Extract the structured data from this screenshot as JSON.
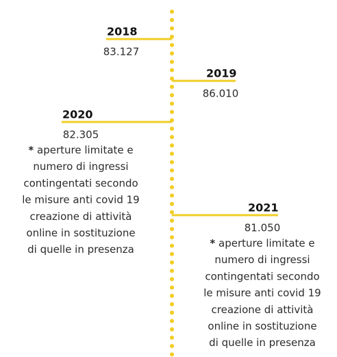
{
  "entries": [
    {
      "year": "2018",
      "value": "83.127"
    },
    {
      "year": "2019",
      "value": "86.010"
    },
    {
      "year": "2020",
      "value": "82.305",
      "marker": "*",
      "note": [
        "aperture limitate e",
        "numero di ingressi",
        "contingentati secondo",
        "le misure anti covid 19",
        "creazione di attività",
        "online in sostituzione",
        "di quelle in presenza"
      ]
    },
    {
      "year": "2021",
      "value": "81.050",
      "marker": "*",
      "note": [
        "aperture limitate e",
        "numero di ingressi",
        "contingentati secondo",
        "le misure anti covid 19",
        "creazione di attività",
        "online in sostituzione",
        "di quelle in presenza"
      ]
    }
  ]
}
